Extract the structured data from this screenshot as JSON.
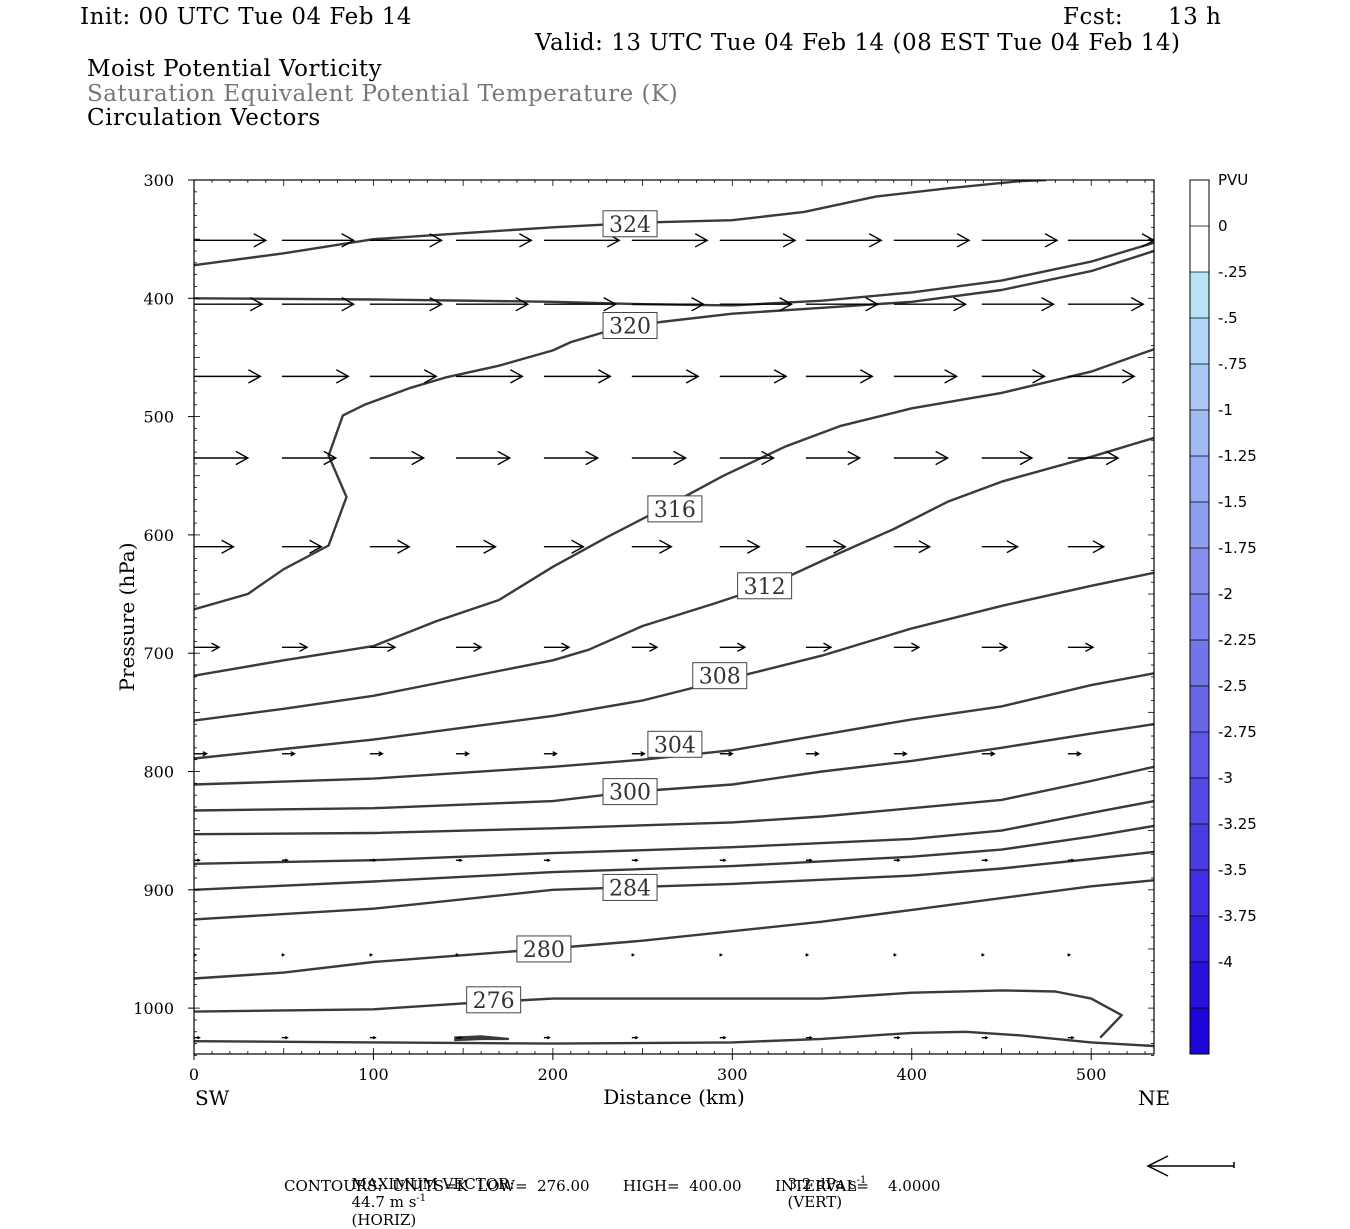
{
  "header": {
    "init": "Init: 00 UTC Tue 04 Feb 14",
    "fcst_label": "Fcst:",
    "fcst_value": "13 h",
    "valid": "Valid: 13 UTC Tue 04 Feb 14 (08 EST Tue 04 Feb 14)",
    "field1": "Moist Potential Vorticity",
    "field2": "Saturation Equivalent Potential Temperature (K)",
    "field3": "Circulation Vectors"
  },
  "footer": {
    "max_vector_label": "MAXIMUM VECTOR:",
    "max_vector_horiz": "44.7 m s",
    "horiz_tag": "(HORIZ)",
    "max_vector_vert": "3.2 dPa s",
    "vert_tag": "(VERT)",
    "exponent": "-1",
    "contours": "CONTOURS:  UNITS=K  LOW=  276.00       HIGH=  400.00       INTERVAL=    4.0000"
  },
  "colors": {
    "contour": "#3a3a3a",
    "vector": "#000000",
    "header_gray": "#777777"
  },
  "chart_data": {
    "type": "cross-section",
    "xlabel": "Distance (km)",
    "ylabel": "Pressure (hPa)",
    "xlim": [
      0,
      535
    ],
    "ylim": [
      300,
      1040
    ],
    "y_scale": "linear",
    "x_ticks": [
      0,
      100,
      200,
      300,
      400,
      500
    ],
    "y_ticks": [
      300,
      400,
      500,
      600,
      700,
      800,
      900,
      1000
    ],
    "x_end_labels": {
      "left": "SW",
      "right": "NE"
    },
    "colorbar": {
      "title": "PVU",
      "labels": [
        "0",
        "-.25",
        "-.5",
        "-.75",
        "-1",
        "-1.25",
        "-1.5",
        "-1.75",
        "-2",
        "-2.25",
        "-2.5",
        "-2.75",
        "-3",
        "-3.25",
        "-3.5",
        "-3.75",
        "-4"
      ],
      "colors": [
        "#ffffff",
        "#ffffff",
        "#b8e4f8",
        "#b2d6f8",
        "#a9c8f6",
        "#a0baf4",
        "#97acf2",
        "#8e9ef0",
        "#8590ee",
        "#7c82ec",
        "#7274ea",
        "#6966e8",
        "#5f58e6",
        "#554ae4",
        "#4b3ce2",
        "#402ee0",
        "#3520de",
        "#2a12dc",
        "#1f04da"
      ]
    },
    "contours": [
      {
        "label": "324",
        "label_pos": [
          243,
          337
        ],
        "points": [
          [
            0,
            372
          ],
          [
            50,
            362
          ],
          [
            100,
            350
          ],
          [
            150,
            345
          ],
          [
            200,
            340
          ],
          [
            250,
            336
          ],
          [
            300,
            334
          ],
          [
            340,
            327
          ],
          [
            380,
            314
          ],
          [
            420,
            307
          ],
          [
            460,
            301
          ],
          [
            475,
            300
          ]
        ]
      },
      {
        "label": "320",
        "label_pos": [
          243,
          423
        ],
        "points": [
          [
            0,
            400
          ],
          [
            100,
            401
          ],
          [
            200,
            403
          ],
          [
            250,
            405
          ],
          [
            300,
            406
          ],
          [
            350,
            402
          ],
          [
            400,
            395
          ],
          [
            450,
            385
          ],
          [
            500,
            369
          ],
          [
            535,
            353
          ]
        ]
      },
      {
        "label": "",
        "label_pos": null,
        "points": [
          [
            0,
            663
          ],
          [
            30,
            650
          ],
          [
            50,
            629
          ],
          [
            75,
            609
          ],
          [
            85,
            568
          ],
          [
            75,
            533
          ],
          [
            83,
            499
          ],
          [
            95,
            490
          ],
          [
            120,
            476
          ],
          [
            140,
            467
          ],
          [
            170,
            457
          ],
          [
            200,
            444
          ],
          [
            210,
            437
          ],
          [
            230,
            428
          ],
          [
            260,
            420
          ],
          [
            300,
            413
          ],
          [
            350,
            408
          ],
          [
            400,
            403
          ],
          [
            450,
            393
          ],
          [
            500,
            377
          ],
          [
            535,
            360
          ]
        ]
      },
      {
        "label": "316",
        "label_pos": [
          268,
          578
        ],
        "points": [
          [
            0,
            719
          ],
          [
            50,
            706
          ],
          [
            100,
            694
          ],
          [
            135,
            673
          ],
          [
            170,
            655
          ],
          [
            200,
            627
          ],
          [
            230,
            602
          ],
          [
            262,
            577
          ],
          [
            295,
            550
          ],
          [
            330,
            525
          ],
          [
            360,
            508
          ],
          [
            400,
            493
          ],
          [
            450,
            480
          ],
          [
            500,
            462
          ],
          [
            535,
            443
          ]
        ]
      },
      {
        "label": "312",
        "label_pos": [
          318,
          643
        ],
        "points": [
          [
            0,
            757
          ],
          [
            50,
            747
          ],
          [
            100,
            736
          ],
          [
            150,
            721
          ],
          [
            200,
            706
          ],
          [
            220,
            697
          ],
          [
            250,
            677
          ],
          [
            290,
            658
          ],
          [
            320,
            643
          ],
          [
            350,
            622
          ],
          [
            390,
            595
          ],
          [
            420,
            572
          ],
          [
            450,
            555
          ],
          [
            500,
            534
          ],
          [
            535,
            518
          ]
        ]
      },
      {
        "label": "308",
        "label_pos": [
          293,
          719
        ],
        "points": [
          [
            0,
            789
          ],
          [
            50,
            781
          ],
          [
            100,
            773
          ],
          [
            150,
            763
          ],
          [
            200,
            753
          ],
          [
            250,
            740
          ],
          [
            300,
            721
          ],
          [
            350,
            702
          ],
          [
            400,
            679
          ],
          [
            450,
            660
          ],
          [
            500,
            643
          ],
          [
            535,
            632
          ]
        ]
      },
      {
        "label": "304",
        "label_pos": [
          268,
          777
        ],
        "points": [
          [
            0,
            811
          ],
          [
            100,
            806
          ],
          [
            200,
            796
          ],
          [
            250,
            790
          ],
          [
            300,
            782
          ],
          [
            350,
            769
          ],
          [
            400,
            756
          ],
          [
            450,
            745
          ],
          [
            500,
            727
          ],
          [
            535,
            717
          ]
        ]
      },
      {
        "label": "300",
        "label_pos": [
          243,
          817
        ],
        "points": [
          [
            0,
            833
          ],
          [
            100,
            831
          ],
          [
            200,
            825
          ],
          [
            245,
            817
          ],
          [
            300,
            811
          ],
          [
            350,
            800
          ],
          [
            400,
            791
          ],
          [
            450,
            780
          ],
          [
            500,
            768
          ],
          [
            535,
            760
          ]
        ]
      },
      {
        "label": "",
        "label_pos": null,
        "points": [
          [
            0,
            853
          ],
          [
            100,
            852
          ],
          [
            200,
            848
          ],
          [
            300,
            843
          ],
          [
            350,
            838
          ],
          [
            400,
            831
          ],
          [
            450,
            824
          ],
          [
            500,
            808
          ],
          [
            535,
            796
          ]
        ]
      },
      {
        "label": "",
        "label_pos": null,
        "points": [
          [
            0,
            878
          ],
          [
            100,
            875
          ],
          [
            200,
            869
          ],
          [
            300,
            864
          ],
          [
            400,
            857
          ],
          [
            450,
            850
          ],
          [
            500,
            835
          ],
          [
            535,
            825
          ]
        ]
      },
      {
        "label": "",
        "label_pos": null,
        "points": [
          [
            0,
            900
          ],
          [
            100,
            893
          ],
          [
            200,
            885
          ],
          [
            300,
            880
          ],
          [
            400,
            872
          ],
          [
            450,
            866
          ],
          [
            500,
            855
          ],
          [
            535,
            846
          ]
        ]
      },
      {
        "label": "284",
        "label_pos": [
          243,
          898
        ],
        "points": [
          [
            0,
            925
          ],
          [
            100,
            916
          ],
          [
            200,
            900
          ],
          [
            300,
            895
          ],
          [
            400,
            888
          ],
          [
            450,
            882
          ],
          [
            500,
            874
          ],
          [
            535,
            868
          ]
        ]
      },
      {
        "label": "280",
        "label_pos": [
          195,
          950
        ],
        "points": [
          [
            0,
            975
          ],
          [
            50,
            970
          ],
          [
            100,
            961
          ],
          [
            195,
            950
          ],
          [
            250,
            943
          ],
          [
            300,
            935
          ],
          [
            350,
            927
          ],
          [
            400,
            917
          ],
          [
            450,
            907
          ],
          [
            500,
            897
          ],
          [
            535,
            892
          ]
        ]
      },
      {
        "label": "276",
        "label_pos": [
          167,
          993
        ],
        "points": [
          [
            0,
            1003
          ],
          [
            100,
            1001
          ],
          [
            150,
            996
          ],
          [
            200,
            992
          ],
          [
            300,
            992
          ],
          [
            350,
            992
          ],
          [
            400,
            987
          ],
          [
            450,
            985
          ],
          [
            480,
            986
          ],
          [
            500,
            992
          ],
          [
            517,
            1006
          ],
          [
            505,
            1025
          ]
        ]
      },
      {
        "label": "",
        "label_pos": null,
        "points": [
          [
            0,
            1028
          ],
          [
            100,
            1029
          ],
          [
            200,
            1030
          ],
          [
            300,
            1029
          ],
          [
            350,
            1026
          ],
          [
            400,
            1021
          ],
          [
            430,
            1020
          ],
          [
            460,
            1023
          ],
          [
            500,
            1029
          ],
          [
            535,
            1032
          ]
        ]
      },
      {
        "label": "",
        "label_pos": null,
        "points": [
          [
            145,
            1025
          ],
          [
            160,
            1024
          ],
          [
            175,
            1026
          ],
          [
            160,
            1026
          ],
          [
            145,
            1027
          ]
        ]
      }
    ],
    "vector_columns_km": [
      0,
      49,
      98,
      146,
      195,
      244,
      293,
      341,
      390,
      439,
      487
    ],
    "vector_rows": [
      {
        "p": 351,
        "len_km": [
          40,
          40,
          40,
          42,
          42,
          42,
          42,
          42,
          42,
          42,
          48
        ]
      },
      {
        "p": 405,
        "len_km": [
          38,
          40,
          40,
          40,
          40,
          40,
          40,
          40,
          40,
          40,
          42
        ]
      },
      {
        "p": 466,
        "len_km": [
          37,
          37,
          37,
          37,
          37,
          37,
          37,
          37,
          35,
          35,
          37
        ]
      },
      {
        "p": 535,
        "len_km": [
          30,
          30,
          30,
          30,
          30,
          30,
          30,
          30,
          30,
          28,
          28
        ]
      },
      {
        "p": 610,
        "len_km": [
          22,
          22,
          22,
          22,
          22,
          22,
          22,
          22,
          20,
          20,
          20
        ]
      },
      {
        "p": 695,
        "len_km": [
          14,
          14,
          14,
          14,
          14,
          14,
          14,
          14,
          14,
          14,
          14
        ]
      },
      {
        "p": 785,
        "len_km": [
          7,
          7,
          7,
          7,
          7,
          7,
          7,
          7,
          7,
          7,
          7
        ]
      },
      {
        "p": 875,
        "len_km": [
          3,
          3,
          3,
          3,
          3,
          3,
          3,
          3,
          3,
          3,
          3
        ]
      },
      {
        "p": 955,
        "len_km": [
          1,
          1,
          1,
          1,
          1,
          1,
          1,
          1,
          1,
          1,
          1
        ]
      },
      {
        "p": 1025,
        "len_km": [
          3,
          3,
          3,
          3,
          3,
          3,
          3,
          3,
          3,
          3,
          3
        ]
      }
    ]
  }
}
